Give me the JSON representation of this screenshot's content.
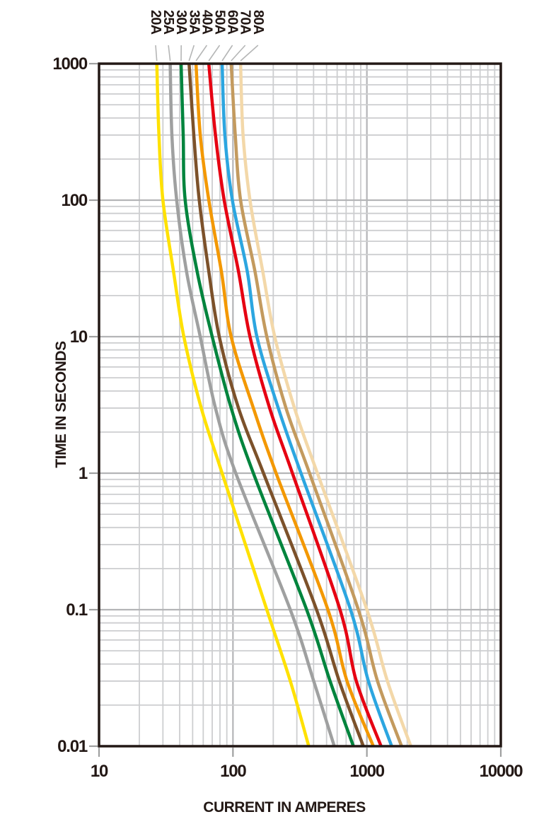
{
  "chart_data": {
    "type": "line",
    "title": "",
    "xlabel": "CURRENT IN AMPERES",
    "ylabel": "TIME IN SECONDS",
    "x_scale": "log",
    "y_scale": "log",
    "xlim": [
      10,
      10000
    ],
    "ylim": [
      0.01,
      1000
    ],
    "x_ticks": [
      10,
      100,
      1000,
      10000
    ],
    "x_tick_labels": [
      "10",
      "100",
      "1000",
      "10000"
    ],
    "y_ticks": [
      1000,
      100,
      10,
      1,
      0.1,
      0.01
    ],
    "y_tick_labels": [
      "1000",
      "100",
      "10",
      "1",
      "0.1",
      "0.01"
    ],
    "grid": {
      "minor": true,
      "major": true,
      "minor_steps": [
        2,
        3,
        4,
        5,
        6,
        7,
        8,
        9
      ]
    },
    "legend_position": "top-labels-with-leader-lines",
    "sample_times_seconds": [
      1000,
      300,
      100,
      30,
      10,
      3,
      1,
      0.1,
      0.03,
      0.01
    ],
    "series": [
      {
        "name": "20A",
        "color": "#ffe100",
        "amps_at_sample_times": [
          27,
          28,
          30,
          36,
          43,
          58,
          83,
          179,
          268,
          368
        ]
      },
      {
        "name": "25A",
        "color": "#9fa0a0",
        "amps_at_sample_times": [
          34,
          35,
          38,
          45,
          57,
          74,
          105,
          268,
          401,
          571
        ]
      },
      {
        "name": "30A",
        "color": "#00843d",
        "amps_at_sample_times": [
          41,
          42.5,
          44,
          54,
          70,
          97,
          142,
          355,
          531,
          793
        ]
      },
      {
        "name": "35A",
        "color": "#7c512a",
        "amps_at_sample_times": [
          47,
          51,
          56,
          66,
          79,
          110,
          169,
          421,
          622,
          941
        ]
      },
      {
        "name": "40A",
        "color": "#f39800",
        "amps_at_sample_times": [
          53,
          57,
          66,
          82,
          97,
          142,
          210,
          512,
          711,
          1117
        ]
      },
      {
        "name": "50A",
        "color": "#e60012",
        "amps_at_sample_times": [
          66,
          74,
          86,
          110,
          134,
          188,
          278,
          630,
          834,
          1276
        ]
      },
      {
        "name": "60A",
        "color": "#2ca6e0",
        "amps_at_sample_times": [
          83,
          87,
          99,
          128,
          151,
          218,
          322,
          755,
          1026,
          1532
        ]
      },
      {
        "name": "70A",
        "color": "#c39a5e",
        "amps_at_sample_times": [
          97,
          104,
          114,
          146,
          179,
          249,
          373,
          864,
          1200,
          1816
        ]
      },
      {
        "name": "80A",
        "color": "#f3d8a9",
        "amps_at_sample_times": [
          114,
          119,
          134,
          167,
          205,
          288,
          427,
          1000,
          1423,
          2128
        ]
      }
    ]
  },
  "colors": {
    "background": "#ffffff",
    "axis_frame": "#231815",
    "text": "#231815",
    "grid_minor": "#cdced0",
    "grid_major": "#b4b5b7",
    "outer_tick": "#9fa0a0",
    "leader_line": "#b5b6b6"
  }
}
